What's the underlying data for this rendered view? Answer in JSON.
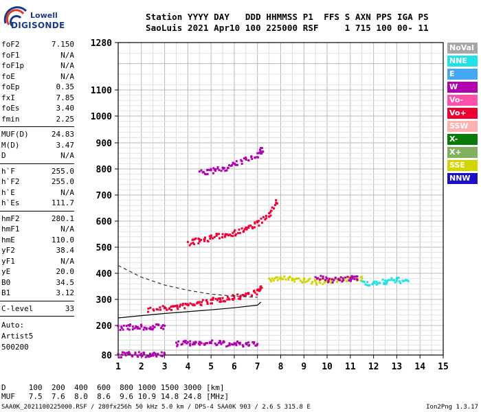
{
  "logo": {
    "line1": "Lowell",
    "line2": "DIGISONDE"
  },
  "header": {
    "line1": "Station YYYY DAY   DDD HHMMSS P1  FFS S AXN PPS IGA PS",
    "line2": "SaoLuis 2021 Apr10 100 225000 RSF     1 715 100 00- 11"
  },
  "params_group1": [
    {
      "name": "foF2",
      "value": "7.150"
    },
    {
      "name": "foF1",
      "value": "N/A"
    },
    {
      "name": "foF1p",
      "value": "N/A"
    },
    {
      "name": "foE",
      "value": "N/A"
    },
    {
      "name": "foEp",
      "value": "0.35"
    },
    {
      "name": "fxI",
      "value": "7.85"
    },
    {
      "name": "foEs",
      "value": "3.40"
    },
    {
      "name": "fmin",
      "value": "2.25"
    }
  ],
  "params_group2": [
    {
      "name": "MUF(D)",
      "value": "24.83"
    },
    {
      "name": "M(D)",
      "value": "3.47"
    },
    {
      "name": "D",
      "value": "N/A"
    }
  ],
  "params_group3": [
    {
      "name": "h`F",
      "value": "255.0"
    },
    {
      "name": "h`F2",
      "value": "255.0"
    },
    {
      "name": "h`E",
      "value": "N/A"
    },
    {
      "name": "h`Es",
      "value": "111.7"
    }
  ],
  "params_group4": [
    {
      "name": "hmF2",
      "value": "280.1"
    },
    {
      "name": "hmF1",
      "value": "N/A"
    },
    {
      "name": "hmE",
      "value": "110.0"
    },
    {
      "name": "yF2",
      "value": "38.4"
    },
    {
      "name": "yF1",
      "value": "N/A"
    },
    {
      "name": "yE",
      "value": "20.0"
    },
    {
      "name": "B0",
      "value": "34.5"
    },
    {
      "name": "B1",
      "value": "3.12"
    }
  ],
  "clevel": {
    "name": "C-level",
    "value": "33"
  },
  "auto": [
    "Auto:",
    "Artist5",
    "500200"
  ],
  "legend": [
    {
      "label": "NoVal",
      "color": "#a6a6a6"
    },
    {
      "label": "NNE",
      "color": "#22e0e8"
    },
    {
      "label": "E",
      "color": "#46a8f0"
    },
    {
      "label": "W",
      "color": "#b000b0"
    },
    {
      "label": "Vo-",
      "color": "#ff4fa8"
    },
    {
      "label": "Vo+",
      "color": "#ee0033"
    },
    {
      "label": "SSW",
      "color": "#ffb0b0"
    },
    {
      "label": "X-",
      "color": "#0a7a0a"
    },
    {
      "label": "X+",
      "color": "#80b060"
    },
    {
      "label": "SSE",
      "color": "#d4d400"
    },
    {
      "label": "NNW",
      "color": "#1a10c8"
    }
  ],
  "bottom": {
    "line1": "D     100  200  400  600  800 1000 1500 3000 [km]",
    "line2": "MUF   7.5  7.6  8.0  8.6  9.6 10.9 14.8 24.8 [MHz]"
  },
  "footer": {
    "left": "SAA0K_2021100225000.RSF / 280fx256h 50 kHz 5.0 km / DPS-4 SAA0K 903 / 2.6 S 315.8 E",
    "right": "Ion2Png 1.3.17"
  },
  "chart_data": {
    "type": "scatter",
    "title": "",
    "xlabel": "",
    "ylabel": "",
    "xlim": [
      1,
      15
    ],
    "x_ticks": [
      1,
      2,
      3,
      4,
      5,
      6,
      7,
      8,
      9,
      10,
      11,
      12,
      13,
      14,
      15
    ],
    "y_axis_scale": "log-like (virtual height, km)",
    "y_ticks": [
      80,
      200,
      300,
      400,
      500,
      600,
      700,
      800,
      900,
      1000,
      1100,
      1280
    ],
    "grid": true,
    "traces": [
      {
        "name": "F2 O-trace",
        "color": "#ee0033",
        "x": [
          2.3,
          3,
          3.5,
          4,
          4.5,
          5,
          5.5,
          6,
          6.5,
          7,
          7.15
        ],
        "y": [
          265,
          270,
          275,
          282,
          290,
          298,
          305,
          312,
          322,
          335,
          350
        ]
      },
      {
        "name": "F2 2nd hop",
        "color": "#ee0033",
        "x": [
          4,
          4.5,
          5,
          5.5,
          6,
          6.5,
          7,
          7.5,
          7.8
        ],
        "y": [
          520,
          530,
          540,
          550,
          560,
          575,
          595,
          630,
          680
        ]
      },
      {
        "name": "F2 3rd hop",
        "color": "#b000b0",
        "x": [
          4.5,
          5,
          5.5,
          6,
          6.5,
          7,
          7.2
        ],
        "y": [
          790,
          795,
          805,
          820,
          840,
          860,
          880
        ]
      },
      {
        "name": "X-trace cluster",
        "color": "#d4d400",
        "x": [
          7.5,
          8,
          8.5,
          9,
          9.5,
          10,
          10.5,
          11,
          11.5
        ],
        "y": [
          380,
          385,
          380,
          375,
          370,
          375,
          380,
          385,
          380
        ]
      },
      {
        "name": "W cluster",
        "color": "#b000b0",
        "x": [
          9.5,
          10,
          10.5,
          11,
          11.3
        ],
        "y": [
          385,
          380,
          378,
          382,
          388
        ]
      },
      {
        "name": "NNE scatter",
        "color": "#22e0e8",
        "x": [
          11.5,
          12,
          12.5,
          13,
          13.5
        ],
        "y": [
          370,
          365,
          372,
          378,
          370
        ]
      },
      {
        "name": "Es trace",
        "color": "#b000b0",
        "x": [
          3.5,
          4,
          4.5,
          5,
          5.5,
          6,
          6.5,
          7
        ],
        "y": [
          130,
          132,
          133,
          133,
          130,
          128,
          126,
          125
        ]
      },
      {
        "name": "E trace",
        "color": "#b000b0",
        "x": [
          1,
          1.5,
          2,
          2.5,
          3
        ],
        "y": [
          85,
          86,
          85,
          86,
          86
        ]
      },
      {
        "name": "low echoes",
        "color": "#b000b0",
        "x": [
          1,
          1.5,
          2,
          2.5,
          3
        ],
        "y": [
          197,
          198,
          196,
          198,
          199
        ]
      },
      {
        "name": "profile",
        "color": "#000000",
        "x": [
          1,
          2,
          3,
          4,
          5,
          6,
          7,
          7.15
        ],
        "y": [
          229,
          238,
          246,
          253,
          260,
          268,
          278,
          290
        ]
      },
      {
        "name": "dashed model",
        "color": "#333333",
        "x": [
          1,
          2,
          3,
          4,
          5,
          6,
          7
        ],
        "y": [
          430,
          385,
          355,
          335,
          320,
          312,
          308
        ]
      }
    ]
  }
}
